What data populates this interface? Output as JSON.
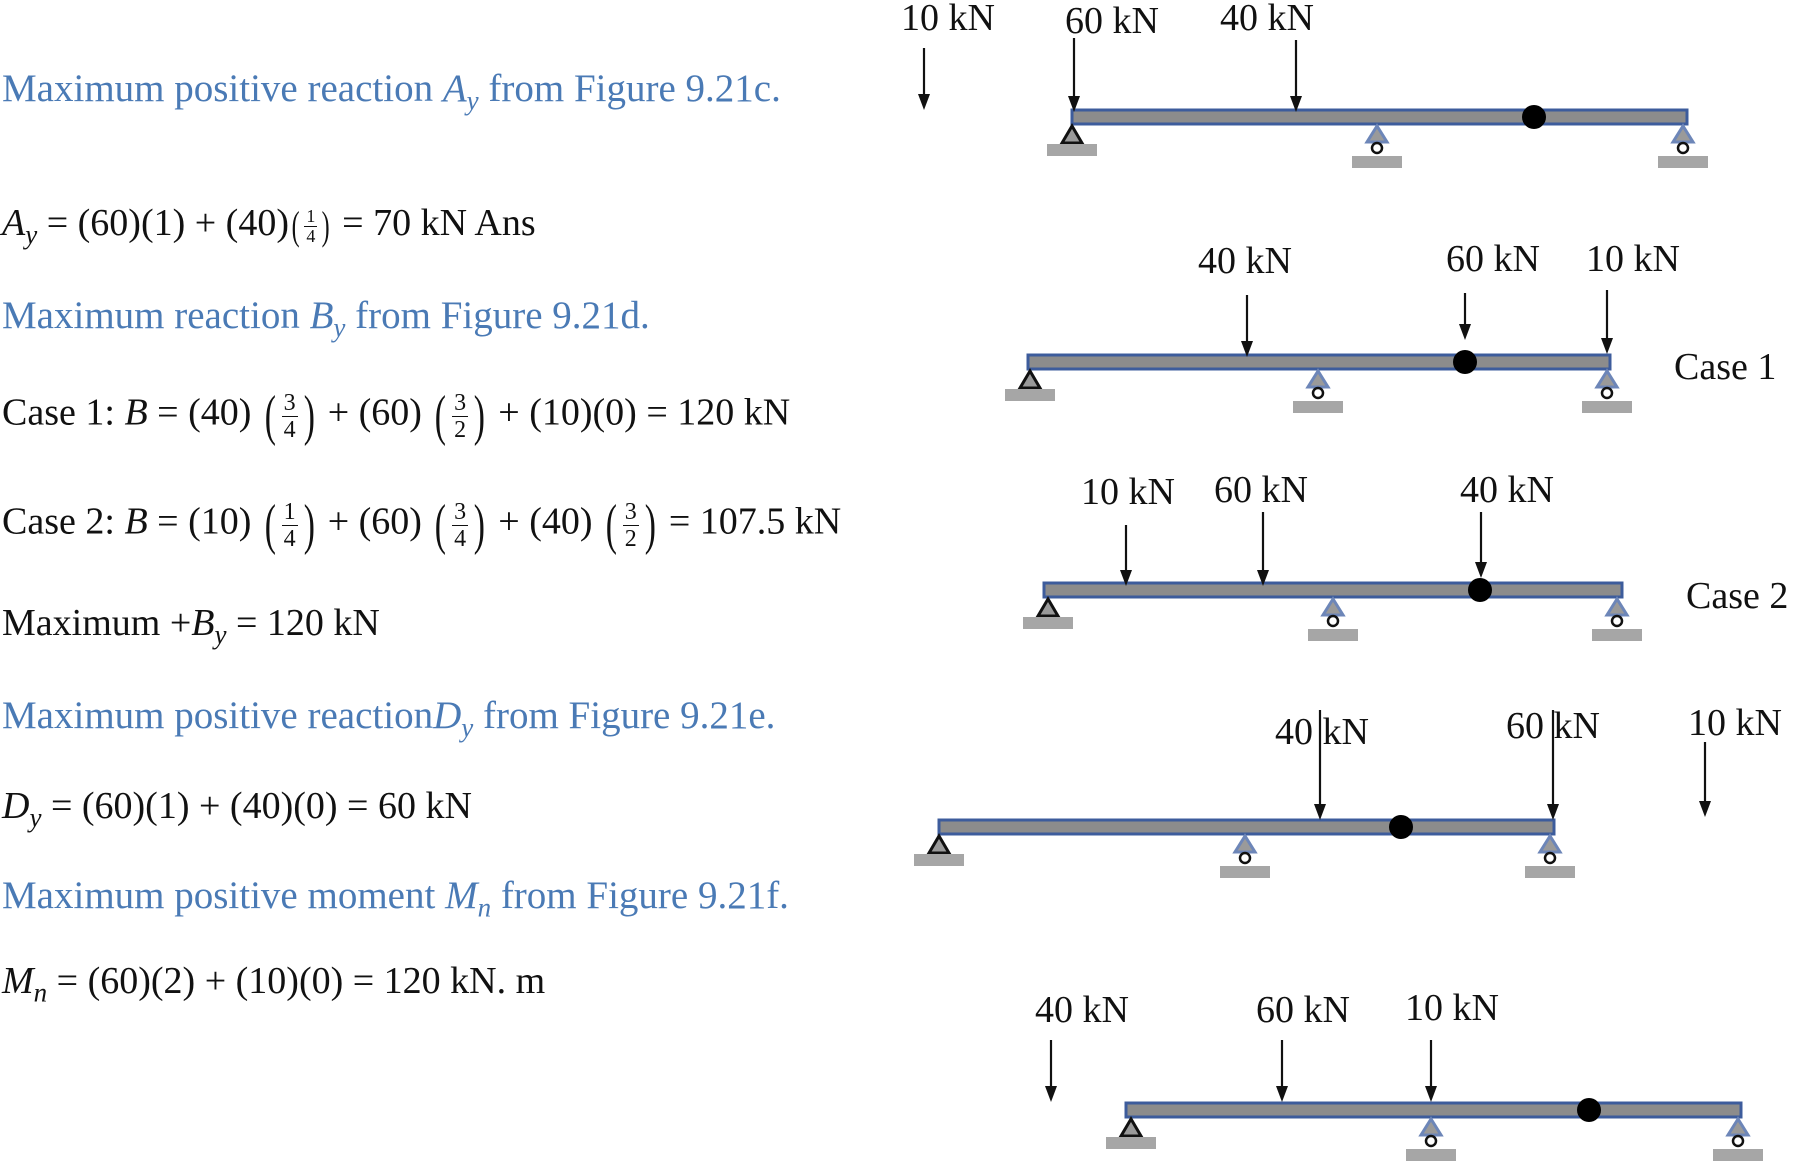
{
  "colors": {
    "text_blue": "#4a7ab5",
    "beam_fill": "#8c8c8c",
    "beam_edge": "#3d5c9c",
    "ground": "#a6a6a6",
    "support_blue": "#6d86b8"
  },
  "lines": {
    "l1": {
      "pre": "Maximum positive reaction ",
      "sym": "A",
      "sub": "y",
      "post": " from Figure 9.21c."
    },
    "l2": {
      "sym": "A",
      "sub": "y",
      "mid": " =  (60)(1) + (40)",
      "n": "1",
      "d": "4",
      "post": " = 70 kN    Ans"
    },
    "l3": {
      "pre": "Maximum reaction ",
      "sym": "B",
      "sub": "y",
      "post": " from Figure 9.21d."
    },
    "l4": {
      "a": "Case 1: ",
      "sym": "B",
      "b": "  =  (40)",
      "n1": "3",
      "d1": "4",
      "c": " + (60)",
      "n2": "3",
      "d2": "2",
      "e": " + (10)(0)  =  120 kN"
    },
    "l5": {
      "a": "Case 2: ",
      "sym": "B",
      "b": "  =  (10)",
      "n1": "1",
      "d1": "4",
      "c": " + (60)",
      "n2": "3",
      "d2": "4",
      "e1": " + (40)",
      "n3": "3",
      "d3": "2",
      "e": "  =  107.5 kN"
    },
    "l6": {
      "pre": "Maximum +",
      "sym": "B",
      "sub": "y",
      "post": "  =  120 kN"
    },
    "l7": {
      "pre": "Maximum positive reaction",
      "sym": "D",
      "sub": "y",
      "post": " from Figure 9.21e."
    },
    "l8": {
      "sym": "D",
      "sub": "y",
      "post": " =  (60)(1) + (40)(0)  =  60 kN"
    },
    "l9": {
      "pre": "Maximum positive moment ",
      "sym": "M",
      "sub": "n",
      "post": " from Figure 9.21f."
    },
    "l10": {
      "sym": "M",
      "sub": "n",
      "post": " =  (60)(2) + (10)(0)  =  120 kN. m"
    }
  },
  "diagrams": [
    {
      "name": "figure-9-21c",
      "loads": [
        "10 kN",
        "60 kN",
        "40 kN"
      ],
      "case_label": ""
    },
    {
      "name": "figure-9-21d-case-1",
      "loads": [
        "40 kN",
        "60 kN",
        "10 kN"
      ],
      "case_label": "Case 1"
    },
    {
      "name": "figure-9-21d-case-2",
      "loads": [
        "10 kN",
        "60 kN",
        "40 kN"
      ],
      "case_label": "Case 2"
    },
    {
      "name": "figure-9-21e",
      "loads": [
        "40 kN",
        "60 kN",
        "10 kN"
      ],
      "case_label": ""
    },
    {
      "name": "figure-9-21f",
      "loads": [
        "40 kN",
        "60 kN",
        "10 kN"
      ],
      "case_label": ""
    }
  ]
}
